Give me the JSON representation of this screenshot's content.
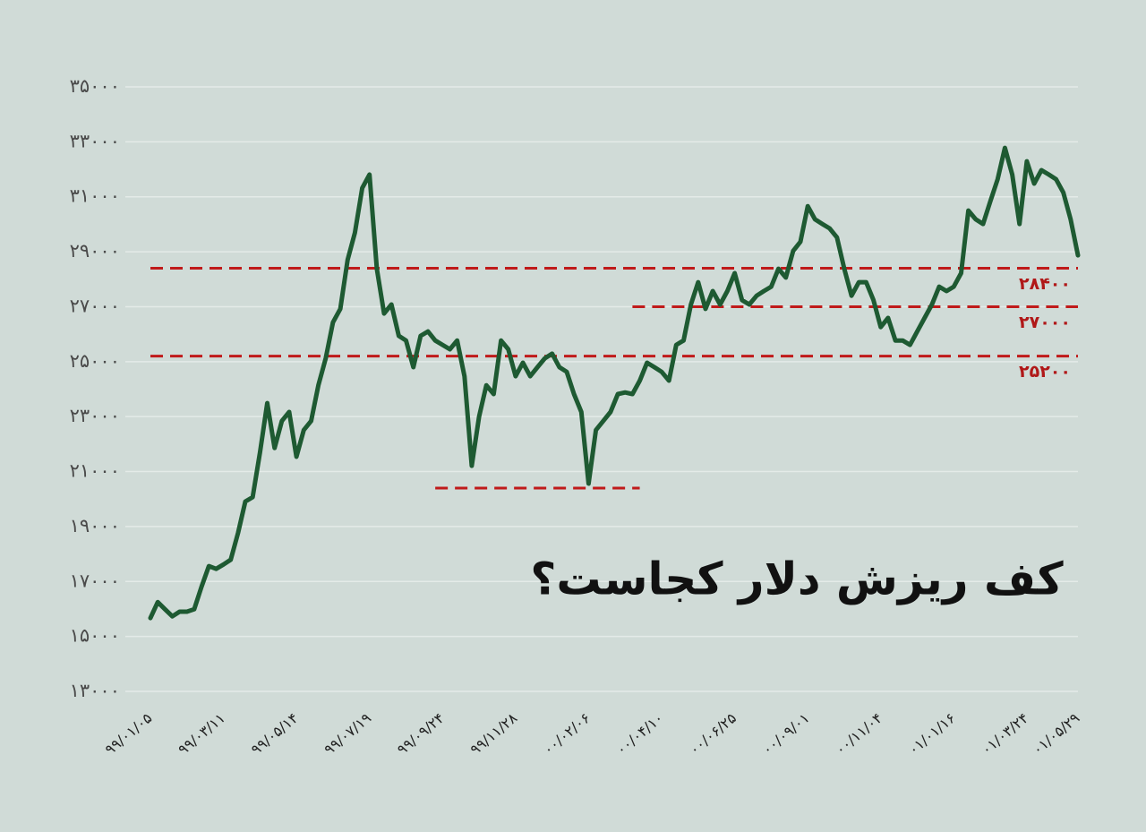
{
  "chart_data": {
    "type": "line",
    "title": "کف ریزش دلار کجاست؟",
    "color": "#1e5a32",
    "grid": true,
    "ylim": [
      13000,
      35000
    ],
    "yticks": [
      {
        "value": 13000,
        "label": "۱۳۰۰۰"
      },
      {
        "value": 15000,
        "label": "۱۵۰۰۰"
      },
      {
        "value": 17000,
        "label": "۱۷۰۰۰"
      },
      {
        "value": 19000,
        "label": "۱۹۰۰۰"
      },
      {
        "value": 21000,
        "label": "۲۱۰۰۰"
      },
      {
        "value": 23000,
        "label": "۲۳۰۰۰"
      },
      {
        "value": 25000,
        "label": "۲۵۰۰۰"
      },
      {
        "value": 27000,
        "label": "۲۷۰۰۰"
      },
      {
        "value": 29000,
        "label": "۲۹۰۰۰"
      },
      {
        "value": 31000,
        "label": "۳۱۰۰۰"
      },
      {
        "value": 33000,
        "label": "۳۳۰۰۰"
      },
      {
        "value": 35000,
        "label": "۳۵۰۰۰"
      }
    ],
    "categories": [
      "۹۹/۰۱/۰۵",
      null,
      null,
      null,
      null,
      null,
      null,
      null,
      null,
      null,
      "۹۹/۰۳/۱۱",
      null,
      null,
      null,
      null,
      null,
      null,
      null,
      null,
      null,
      "۹۹/۰۵/۱۴",
      null,
      null,
      null,
      null,
      null,
      null,
      null,
      null,
      null,
      "۹۹/۰۷/۱۹",
      null,
      null,
      null,
      null,
      null,
      null,
      null,
      null,
      null,
      "۹۹/۰۹/۲۴",
      null,
      null,
      null,
      null,
      null,
      null,
      null,
      null,
      null,
      "۹۹/۱۱/۲۸",
      null,
      null,
      null,
      null,
      null,
      null,
      null,
      null,
      null,
      "۰۰/۰۲/۰۶",
      null,
      null,
      null,
      null,
      null,
      null,
      null,
      null,
      null,
      "۰۰/۰۴/۱۰",
      null,
      null,
      null,
      null,
      null,
      null,
      null,
      null,
      null,
      "۰۰/۰۶/۲۵",
      null,
      null,
      null,
      null,
      null,
      null,
      null,
      null,
      null,
      "۰۰/۰۹/۰۱",
      null,
      null,
      null,
      null,
      null,
      null,
      null,
      null,
      null,
      "۰۰/۱۱/۰۴",
      null,
      null,
      null,
      null,
      null,
      null,
      null,
      null,
      null,
      "۰۱/۰۱/۱۶",
      null,
      null,
      null,
      null,
      null,
      null,
      null,
      null,
      null,
      "۰۱/۰۳/۲۴",
      null,
      null,
      null,
      null,
      null,
      null,
      "۰۱/۰۵/۲۹"
    ],
    "values": [
      15670,
      16250,
      15990,
      15730,
      15900,
      15900,
      15990,
      16810,
      17560,
      17460,
      17620,
      17790,
      18770,
      19910,
      20070,
      21700,
      23490,
      21860,
      22840,
      23170,
      21540,
      22510,
      22840,
      24140,
      25120,
      26430,
      26920,
      28710,
      29690,
      31320,
      31810,
      28380,
      26750,
      27080,
      25940,
      25770,
      24800,
      25940,
      26100,
      25770,
      25610,
      25450,
      25770,
      24470,
      21210,
      23000,
      24140,
      23820,
      25770,
      25450,
      24470,
      24960,
      24470,
      24800,
      25120,
      25290,
      24800,
      24630,
      23820,
      23170,
      20560,
      22510,
      22840,
      23170,
      23820,
      23880,
      23820,
      24310,
      24960,
      24800,
      24630,
      24310,
      25610,
      25770,
      27080,
      27890,
      26920,
      27570,
      27080,
      27570,
      28220,
      27240,
      27080,
      27400,
      27570,
      27730,
      28380,
      28060,
      29030,
      29360,
      30660,
      30180,
      30010,
      29850,
      29520,
      28380,
      27400,
      27890,
      27890,
      27240,
      26260,
      26590,
      25770,
      25770,
      25610,
      26100,
      26590,
      27080,
      27730,
      27570,
      27730,
      28220,
      30500,
      30180,
      30010,
      30830,
      31640,
      32780,
      31810,
      30010,
      32290,
      31480,
      31970,
      31810,
      31640,
      31150,
      30180,
      28870
    ],
    "reference_lines": [
      {
        "value": 28400,
        "label": "۲۸۴۰۰"
      },
      {
        "value": 27000,
        "label": "۲۷۰۰۰"
      },
      {
        "value": 25200,
        "label": "۲۵۲۰۰"
      },
      {
        "value": 20400
      }
    ]
  }
}
